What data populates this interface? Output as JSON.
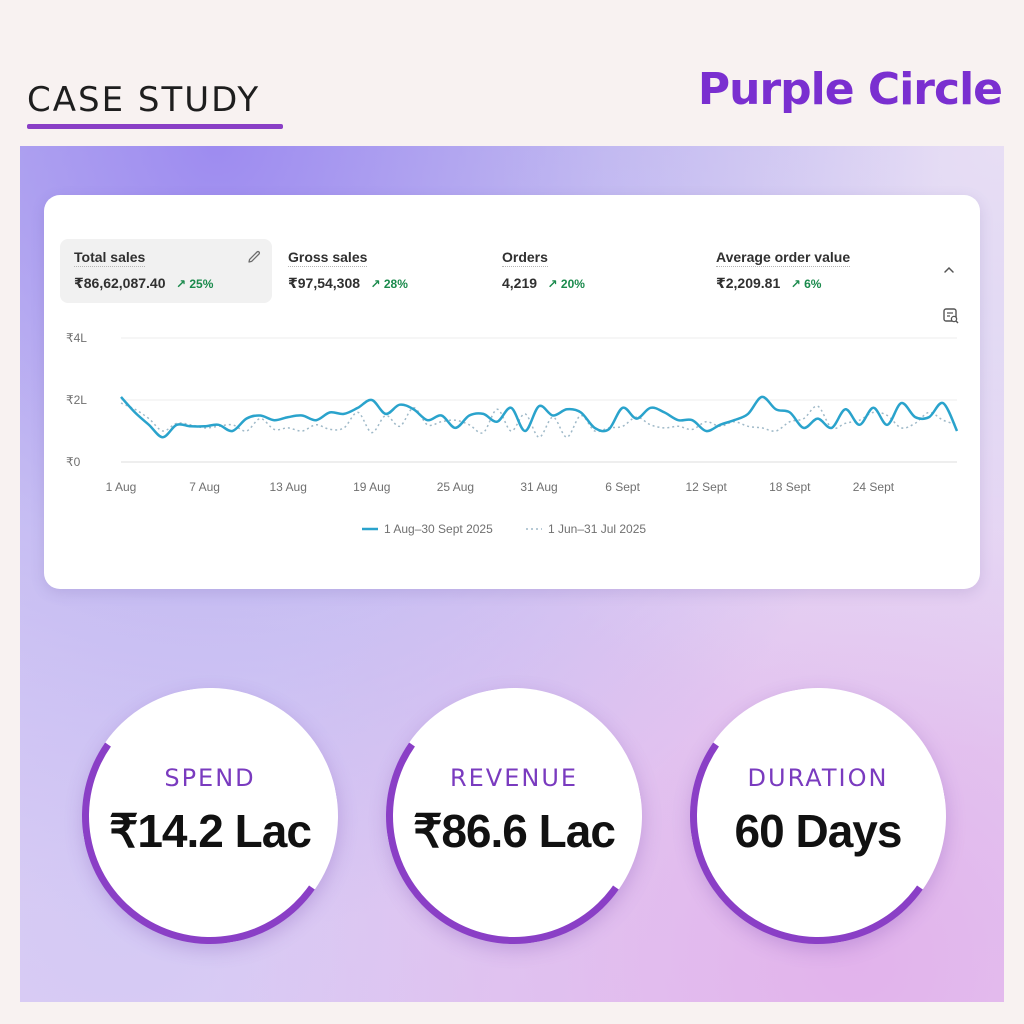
{
  "header": {
    "title": "CASE STUDY",
    "brand": "Purple Circle"
  },
  "colors": {
    "accent": "#8a3fc6",
    "brand": "#7a2fd0",
    "series_current": "#2aa3cc",
    "series_previous": "#9fb9c8",
    "positive": "#1a8a4c"
  },
  "dashboard": {
    "metrics": [
      {
        "label": "Total sales",
        "value": "₹86,62,087.40",
        "change": "↗ 25%",
        "active": true,
        "icon": "pencil-icon"
      },
      {
        "label": "Gross sales",
        "value": "₹97,54,308",
        "change": "↗ 28%"
      },
      {
        "label": "Orders",
        "value": "4,219",
        "change": "↗ 20%"
      },
      {
        "label": "Average order value",
        "value": "₹2,209.81",
        "change": "↗ 6%"
      }
    ],
    "icons": [
      "chevron-up-icon",
      "insight-icon"
    ],
    "legend": {
      "current": "1 Aug–30 Sept 2025",
      "previous": "1 Jun–31 Jul 2025"
    }
  },
  "chart_data": {
    "type": "line",
    "x": [
      "1 Aug",
      "2 Aug",
      "3 Aug",
      "4 Aug",
      "5 Aug",
      "6 Aug",
      "7 Aug",
      "8 Aug",
      "9 Aug",
      "10 Aug",
      "11 Aug",
      "12 Aug",
      "13 Aug",
      "14 Aug",
      "15 Aug",
      "16 Aug",
      "17 Aug",
      "18 Aug",
      "19 Aug",
      "20 Aug",
      "21 Aug",
      "22 Aug",
      "23 Aug",
      "24 Aug",
      "25 Aug",
      "26 Aug",
      "27 Aug",
      "28 Aug",
      "29 Aug",
      "30 Aug",
      "31 Aug",
      "1 Sept",
      "2 Sept",
      "3 Sept",
      "4 Sept",
      "5 Sept",
      "6 Sept",
      "7 Sept",
      "8 Sept",
      "9 Sept",
      "10 Sept",
      "11 Sept",
      "12 Sept",
      "13 Sept",
      "14 Sept",
      "15 Sept",
      "16 Sept",
      "17 Sept",
      "18 Sept",
      "19 Sept",
      "20 Sept",
      "21 Sept",
      "22 Sept",
      "23 Sept",
      "24 Sept",
      "25 Sept",
      "26 Sept",
      "27 Sept",
      "28 Sept",
      "29 Sept",
      "30 Sept"
    ],
    "xticks": [
      "1 Aug",
      "7 Aug",
      "13 Aug",
      "19 Aug",
      "25 Aug",
      "31 Aug",
      "6 Sept",
      "12 Sept",
      "18 Sept",
      "24 Sept"
    ],
    "yticks": [
      "₹4L",
      "₹2L",
      "₹0"
    ],
    "ylim": [
      0,
      4
    ],
    "yunit": "Lakh ₹",
    "series": [
      {
        "name": "1 Aug–30 Sept 2025",
        "style": "solid",
        "values": [
          2.1,
          1.6,
          1.2,
          0.8,
          1.2,
          1.15,
          1.15,
          1.2,
          1.0,
          1.4,
          1.5,
          1.35,
          1.45,
          1.5,
          1.35,
          1.6,
          1.55,
          1.75,
          2.0,
          1.55,
          1.85,
          1.7,
          1.35,
          1.5,
          1.1,
          1.5,
          1.55,
          1.3,
          1.75,
          1.0,
          1.8,
          1.5,
          1.7,
          1.6,
          1.1,
          1.05,
          1.75,
          1.4,
          1.75,
          1.6,
          1.35,
          1.35,
          1.0,
          1.2,
          1.35,
          1.55,
          2.1,
          1.7,
          1.6,
          1.1,
          1.4,
          1.1,
          1.7,
          1.2,
          1.75,
          1.2,
          1.9,
          1.45,
          1.45,
          1.9,
          1.0
        ]
      },
      {
        "name": "1 Jun–31 Jul 2025",
        "style": "dotted",
        "values": [
          1.9,
          1.7,
          1.4,
          1.0,
          1.25,
          1.2,
          1.1,
          1.15,
          1.2,
          1.0,
          1.4,
          1.05,
          1.1,
          1.0,
          1.2,
          1.05,
          1.1,
          1.6,
          0.95,
          1.5,
          1.15,
          1.75,
          1.2,
          1.3,
          1.35,
          1.2,
          0.95,
          1.7,
          1.0,
          1.55,
          0.8,
          1.45,
          0.8,
          1.5,
          1.0,
          1.1,
          1.15,
          1.45,
          1.2,
          1.1,
          1.15,
          1.05,
          1.3,
          1.15,
          1.3,
          1.15,
          1.1,
          1.0,
          1.3,
          1.4,
          1.8,
          1.1,
          1.25,
          1.35,
          1.6,
          1.5,
          1.1,
          1.25,
          1.6,
          1.35,
          1.2
        ]
      }
    ]
  },
  "stats": [
    {
      "label": "SPEND",
      "value": "₹14.2 Lac"
    },
    {
      "label": "REVENUE",
      "value": "₹86.6 Lac"
    },
    {
      "label": "DURATION",
      "value": "60 Days"
    }
  ]
}
